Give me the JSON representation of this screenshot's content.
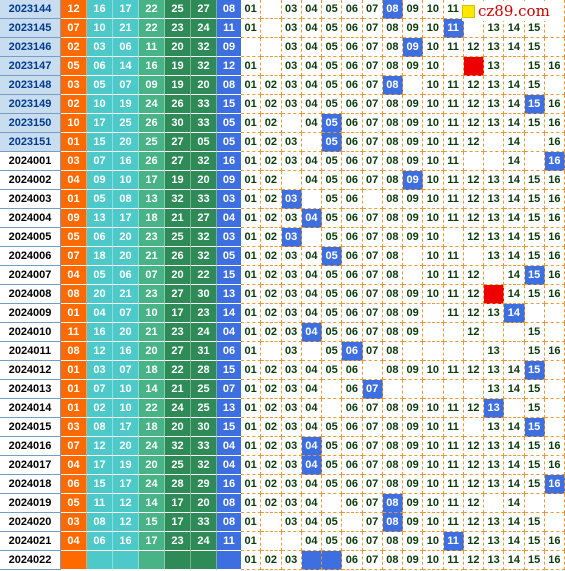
{
  "logo": {
    "text": "cz89.com"
  },
  "colors": {
    "red_zone": [
      "#ff6a00",
      "#4dc9c9",
      "#4dc9c9",
      "#47b386",
      "#2e8b57",
      "#2e8b57"
    ],
    "blue_zone": "#3d6fe0",
    "hit": "#3d6fe0",
    "highlight": "#ee0000"
  },
  "rows": [
    {
      "issue": "2023144",
      "red": [
        "12",
        "16",
        "17",
        "22",
        "25",
        "27"
      ],
      "blue": "08",
      "hits": [
        1,
        3,
        4,
        5,
        6,
        7,
        8,
        9,
        10,
        11
      ],
      "hl": [],
      "hb": [
        8
      ]
    },
    {
      "issue": "2023145",
      "red": [
        "07",
        "10",
        "21",
        "22",
        "23",
        "24"
      ],
      "blue": "11",
      "hits": [
        1,
        3,
        4,
        5,
        6,
        7,
        8,
        9,
        10,
        11,
        13,
        14,
        15
      ],
      "hl": [],
      "hb": [
        11
      ]
    },
    {
      "issue": "2023146",
      "red": [
        "02",
        "03",
        "06",
        "11",
        "20",
        "32"
      ],
      "blue": "09",
      "hits": [
        3,
        4,
        5,
        6,
        7,
        8,
        9,
        10,
        11,
        12,
        13,
        14,
        15
      ],
      "hl": [],
      "hb": [
        9
      ]
    },
    {
      "issue": "2023147",
      "red": [
        "05",
        "06",
        "14",
        "16",
        "19",
        "32"
      ],
      "blue": "12",
      "hits": [
        1,
        3,
        4,
        5,
        6,
        7,
        8,
        9,
        10,
        12,
        13,
        15,
        16
      ],
      "hl": [
        12
      ],
      "hb": []
    },
    {
      "issue": "2023148",
      "red": [
        "03",
        "05",
        "07",
        "09",
        "19",
        "20"
      ],
      "blue": "08",
      "hits": [
        1,
        2,
        3,
        4,
        5,
        6,
        7,
        8,
        10,
        11,
        12,
        13,
        14,
        15
      ],
      "hl": [],
      "hb": [
        8
      ]
    },
    {
      "issue": "2023149",
      "red": [
        "02",
        "10",
        "19",
        "24",
        "26",
        "33"
      ],
      "blue": "15",
      "hits": [
        1,
        2,
        3,
        4,
        5,
        6,
        7,
        8,
        9,
        10,
        11,
        12,
        13,
        14,
        15,
        16
      ],
      "hl": [],
      "hb": [
        15
      ]
    },
    {
      "issue": "2023150",
      "red": [
        "10",
        "17",
        "25",
        "26",
        "30",
        "33"
      ],
      "blue": "05",
      "hits": [
        1,
        2,
        4,
        5,
        6,
        7,
        8,
        9,
        10,
        11,
        12,
        13,
        14,
        15,
        16
      ],
      "hl": [],
      "hb": [
        5
      ]
    },
    {
      "issue": "2023151",
      "red": [
        "01",
        "15",
        "20",
        "25",
        "27",
        "05"
      ],
      "blue": "05",
      "hits": [
        1,
        2,
        3,
        5,
        6,
        7,
        8,
        9,
        10,
        11,
        12,
        14,
        16
      ],
      "hl": [],
      "hb": [
        5
      ]
    },
    {
      "issue": "2024001",
      "red": [
        "03",
        "07",
        "16",
        "26",
        "27",
        "32"
      ],
      "blue": "16",
      "hits": [
        1,
        2,
        3,
        4,
        5,
        6,
        7,
        8,
        9,
        10,
        11,
        14,
        16
      ],
      "hl": [],
      "hb": [
        16
      ]
    },
    {
      "issue": "2024002",
      "red": [
        "04",
        "09",
        "10",
        "17",
        "19",
        "20"
      ],
      "blue": "09",
      "hits": [
        1,
        2,
        4,
        5,
        6,
        7,
        8,
        9,
        10,
        11,
        12,
        13,
        14,
        15,
        16
      ],
      "hl": [],
      "hb": [
        9
      ]
    },
    {
      "issue": "2024003",
      "red": [
        "01",
        "05",
        "08",
        "13",
        "32",
        "33"
      ],
      "blue": "03",
      "hits": [
        1,
        2,
        3,
        5,
        6,
        8,
        9,
        10,
        11,
        12,
        13,
        14,
        15,
        16
      ],
      "hl": [],
      "hb": [
        3
      ]
    },
    {
      "issue": "2024004",
      "red": [
        "09",
        "13",
        "17",
        "18",
        "21",
        "27"
      ],
      "blue": "04",
      "hits": [
        1,
        2,
        3,
        4,
        5,
        6,
        7,
        8,
        9,
        10,
        11,
        12,
        13,
        14,
        15,
        16
      ],
      "hl": [],
      "hb": [
        4
      ]
    },
    {
      "issue": "2024005",
      "red": [
        "05",
        "06",
        "20",
        "23",
        "25",
        "32"
      ],
      "blue": "03",
      "hits": [
        1,
        2,
        3,
        5,
        6,
        7,
        8,
        9,
        10,
        12,
        13,
        14,
        15,
        16
      ],
      "hl": [],
      "hb": [
        3
      ]
    },
    {
      "issue": "2024006",
      "red": [
        "07",
        "18",
        "20",
        "21",
        "26",
        "32"
      ],
      "blue": "05",
      "hits": [
        1,
        2,
        3,
        4,
        5,
        6,
        7,
        8,
        10,
        11,
        13,
        14,
        15,
        16
      ],
      "hl": [],
      "hb": [
        5
      ]
    },
    {
      "issue": "2024007",
      "red": [
        "04",
        "05",
        "06",
        "07",
        "20",
        "22"
      ],
      "blue": "15",
      "hits": [
        1,
        2,
        3,
        4,
        5,
        6,
        7,
        8,
        10,
        11,
        12,
        14,
        15,
        16
      ],
      "hl": [],
      "hb": [
        15
      ]
    },
    {
      "issue": "2024008",
      "red": [
        "08",
        "20",
        "21",
        "23",
        "27",
        "30"
      ],
      "blue": "13",
      "hits": [
        1,
        2,
        3,
        4,
        5,
        6,
        7,
        8,
        9,
        10,
        11,
        12,
        13,
        14,
        15,
        16
      ],
      "hl": [
        13
      ],
      "hb": []
    },
    {
      "issue": "2024009",
      "red": [
        "01",
        "04",
        "07",
        "10",
        "17",
        "23"
      ],
      "blue": "14",
      "hits": [
        1,
        2,
        3,
        4,
        5,
        6,
        7,
        8,
        9,
        11,
        12,
        13,
        14
      ],
      "hl": [],
      "hb": [
        14
      ]
    },
    {
      "issue": "2024010",
      "red": [
        "11",
        "16",
        "20",
        "21",
        "23",
        "24"
      ],
      "blue": "04",
      "hits": [
        1,
        2,
        3,
        4,
        5,
        6,
        7,
        8,
        9,
        12,
        15
      ],
      "hl": [],
      "hb": [
        4
      ]
    },
    {
      "issue": "2024011",
      "red": [
        "08",
        "12",
        "16",
        "20",
        "27",
        "31"
      ],
      "blue": "06",
      "hits": [
        1,
        3,
        5,
        6,
        7,
        8,
        13,
        15,
        16
      ],
      "hl": [],
      "hb": [
        6
      ]
    },
    {
      "issue": "2024012",
      "red": [
        "01",
        "03",
        "07",
        "18",
        "22",
        "28"
      ],
      "blue": "15",
      "hits": [
        1,
        2,
        3,
        4,
        5,
        6,
        8,
        9,
        10,
        11,
        12,
        13,
        14,
        15
      ],
      "hl": [],
      "hb": [
        15
      ]
    },
    {
      "issue": "2024013",
      "red": [
        "01",
        "07",
        "10",
        "14",
        "21",
        "25"
      ],
      "blue": "07",
      "hits": [
        1,
        2,
        3,
        4,
        6,
        7,
        13,
        14,
        15
      ],
      "hl": [],
      "hb": [
        7
      ]
    },
    {
      "issue": "2024014",
      "red": [
        "01",
        "02",
        "10",
        "22",
        "24",
        "25"
      ],
      "blue": "13",
      "hits": [
        1,
        2,
        3,
        4,
        6,
        7,
        8,
        9,
        10,
        11,
        12,
        13,
        15
      ],
      "hl": [],
      "hb": [
        13
      ]
    },
    {
      "issue": "2024015",
      "red": [
        "03",
        "08",
        "17",
        "18",
        "20",
        "30"
      ],
      "blue": "15",
      "hits": [
        1,
        2,
        3,
        4,
        5,
        6,
        7,
        8,
        9,
        10,
        11,
        13,
        14,
        15
      ],
      "hl": [],
      "hb": [
        15
      ]
    },
    {
      "issue": "2024016",
      "red": [
        "07",
        "12",
        "20",
        "24",
        "32",
        "33"
      ],
      "blue": "04",
      "hits": [
        1,
        2,
        3,
        4,
        5,
        6,
        7,
        8,
        9,
        10,
        11,
        12,
        13,
        14,
        15,
        16
      ],
      "hl": [],
      "hb": [
        4
      ]
    },
    {
      "issue": "2024017",
      "red": [
        "04",
        "17",
        "19",
        "20",
        "25",
        "32"
      ],
      "blue": "04",
      "hits": [
        1,
        2,
        3,
        4,
        5,
        6,
        7,
        8,
        9,
        10,
        11,
        12,
        13,
        14,
        15,
        16
      ],
      "hl": [],
      "hb": [
        4
      ]
    },
    {
      "issue": "2024018",
      "red": [
        "06",
        "15",
        "17",
        "24",
        "28",
        "29"
      ],
      "blue": "16",
      "hits": [
        1,
        2,
        3,
        4,
        5,
        6,
        7,
        8,
        9,
        10,
        11,
        12,
        13,
        14,
        15,
        16
      ],
      "hl": [],
      "hb": [
        16
      ]
    },
    {
      "issue": "2024019",
      "red": [
        "05",
        "11",
        "12",
        "14",
        "17",
        "20"
      ],
      "blue": "08",
      "hits": [
        1,
        2,
        3,
        4,
        6,
        7,
        8,
        9,
        10,
        11,
        12,
        14
      ],
      "hl": [],
      "hb": [
        8
      ]
    },
    {
      "issue": "2024020",
      "red": [
        "03",
        "08",
        "12",
        "15",
        "17",
        "33"
      ],
      "blue": "08",
      "hits": [
        1,
        3,
        4,
        5,
        7,
        8,
        9,
        10,
        11,
        12,
        13,
        14,
        15
      ],
      "hl": [],
      "hb": [
        8
      ]
    },
    {
      "issue": "2024021",
      "red": [
        "04",
        "06",
        "16",
        "17",
        "23",
        "24"
      ],
      "blue": "11",
      "hits": [
        1,
        4,
        5,
        6,
        7,
        8,
        9,
        10,
        11,
        12,
        13,
        14,
        15,
        16
      ],
      "hl": [],
      "hb": [
        11
      ]
    },
    {
      "issue": "2024022",
      "red": [
        "",
        "",
        "",
        "",
        "",
        ""
      ],
      "blue": "",
      "hits": [
        1,
        2,
        3,
        6,
        7,
        8,
        9,
        10,
        11,
        12,
        13,
        14,
        15,
        16
      ],
      "hl": [],
      "hb": [
        4,
        5
      ]
    }
  ]
}
